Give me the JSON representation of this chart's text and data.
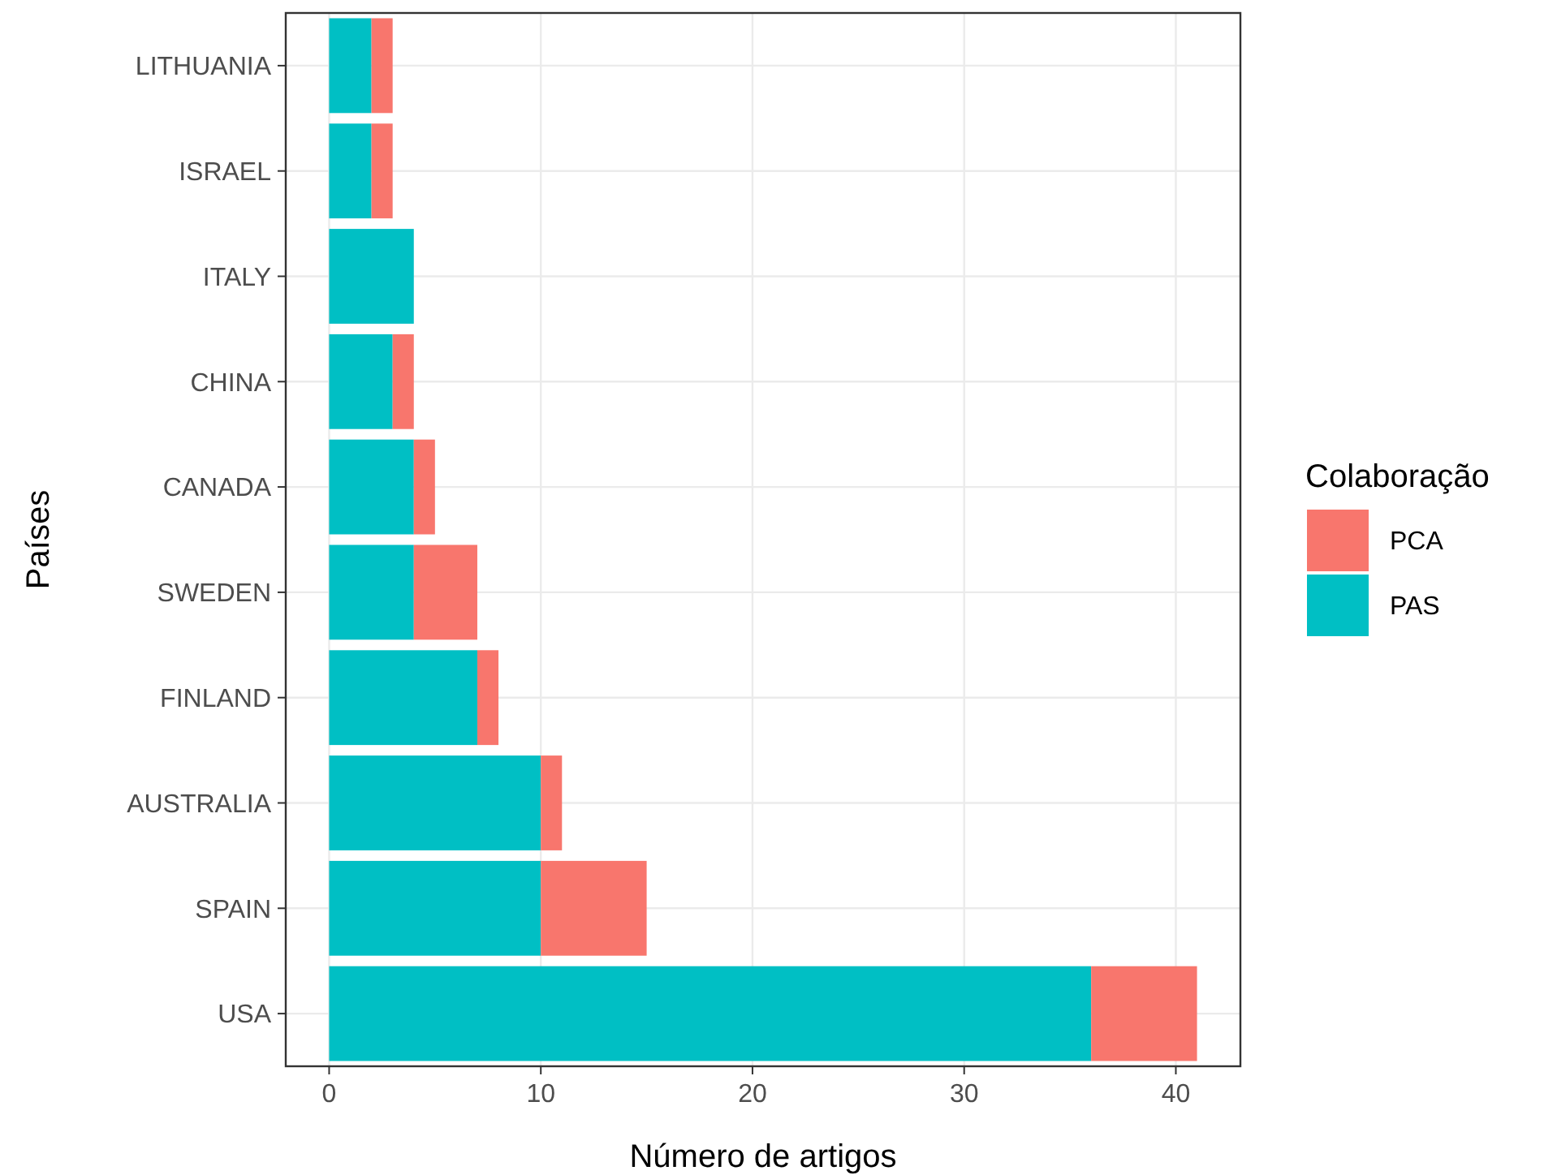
{
  "chart_data": {
    "type": "bar",
    "orientation": "horizontal",
    "stacked": true,
    "xlabel": "Número de artigos",
    "ylabel": "Países",
    "legend_title": "Colaboração",
    "legend": "right",
    "grid": true,
    "categories": [
      "LITHUANIA",
      "ISRAEL",
      "ITALY",
      "CHINA",
      "CANADA",
      "SWEDEN",
      "FINLAND",
      "AUSTRALIA",
      "SPAIN",
      "USA"
    ],
    "series": [
      {
        "name": "PAS",
        "color": "#00bfc4",
        "values": [
          2,
          2,
          4,
          3,
          4,
          4,
          7,
          10,
          10,
          36
        ]
      },
      {
        "name": "PCA",
        "color": "#f8766d",
        "values": [
          1,
          1,
          0,
          1,
          1,
          3,
          1,
          1,
          5,
          5
        ]
      }
    ],
    "xlim": [
      -2.05,
      43.05
    ],
    "xticks": [
      0,
      10,
      20,
      30,
      40
    ]
  }
}
